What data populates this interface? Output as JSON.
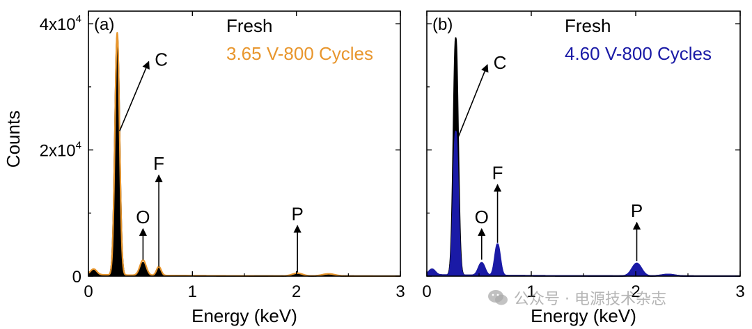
{
  "shared": {
    "ylabel": "Counts",
    "xlabel": "Energy (keV)"
  },
  "watermark": {
    "text": "公众号 · 电源技术杂志",
    "icon": "wechat-icon"
  },
  "chart_data": [
    {
      "type": "line",
      "panel_label": "(a)",
      "xlabel": "Energy (keV)",
      "ylabel": "Counts",
      "xlim": [
        0,
        3
      ],
      "ylim": [
        0,
        42000
      ],
      "x_ticks": [
        0,
        1,
        2,
        3
      ],
      "x_tick_labels": [
        "0",
        "1",
        "2",
        "3"
      ],
      "y_ticks": [
        0,
        20000,
        40000
      ],
      "y_tick_labels": [
        {
          "base": "0",
          "exp": ""
        },
        {
          "base": "2x10",
          "exp": "4"
        },
        {
          "base": "4x10",
          "exp": "4"
        }
      ],
      "legend": [
        "Fresh",
        "3.65 V-800 Cycles"
      ],
      "series": [
        {
          "name": "Fresh",
          "color": "#000000",
          "filled": true,
          "peaks": [
            [
              0.277,
              38000,
              0.022
            ],
            [
              0.525,
              2000,
              0.03
            ],
            [
              0.677,
              1200,
              0.022
            ],
            [
              2.01,
              280,
              0.05
            ],
            [
              2.31,
              250,
              0.06
            ]
          ],
          "baseline": 200
        },
        {
          "name": "3.65 V-800 Cycles",
          "color": "#e8962d",
          "filled": false,
          "peaks": [
            [
              0.277,
              38400,
              0.022
            ],
            [
              0.525,
              2400,
              0.03
            ],
            [
              0.677,
              1400,
              0.022
            ],
            [
              2.01,
              450,
              0.05
            ],
            [
              2.31,
              350,
              0.06
            ]
          ],
          "baseline": 250
        }
      ],
      "annotations": [
        {
          "label": "C",
          "type": "diagonal",
          "x0": 0.3,
          "y0": 23000,
          "x1": 0.58,
          "y1": 34000
        },
        {
          "label": "O",
          "x": 0.525,
          "y_from": 2600,
          "y_to": 7500
        },
        {
          "label": "F",
          "x": 0.677,
          "y_from": 1500,
          "y_to": 16000
        },
        {
          "label": "P",
          "x": 2.01,
          "y_from": 600,
          "y_to": 8000
        }
      ]
    },
    {
      "type": "line",
      "panel_label": "(b)",
      "xlabel": "Energy (keV)",
      "ylabel": "",
      "xlim": [
        0,
        3
      ],
      "ylim": [
        0,
        42000
      ],
      "x_ticks": [
        0,
        1,
        2,
        3
      ],
      "x_tick_labels": [
        "0",
        "1",
        "2",
        "3"
      ],
      "y_ticks": [
        0,
        20000,
        40000
      ],
      "y_tick_labels": [],
      "legend": [
        "Fresh",
        "4.60 V-800 Cycles"
      ],
      "series": [
        {
          "name": "Fresh",
          "color": "#000000",
          "filled": true,
          "peaks": [
            [
              0.277,
              37600,
              0.022
            ],
            [
              0.525,
              2000,
              0.03
            ],
            [
              0.677,
              1200,
              0.022
            ],
            [
              2.01,
              280,
              0.05
            ],
            [
              2.31,
              250,
              0.06
            ]
          ],
          "baseline": 200
        },
        {
          "name": "4.60 V-800 Cycles",
          "color": "#1a1aa6",
          "filled": true,
          "peaks": [
            [
              0.277,
              22800,
              0.022
            ],
            [
              0.525,
              2000,
              0.03
            ],
            [
              0.677,
              5000,
              0.025
            ],
            [
              2.01,
              2000,
              0.045
            ],
            [
              2.31,
              250,
              0.06
            ]
          ],
          "baseline": 200
        }
      ],
      "annotations": [
        {
          "label": "C",
          "type": "diagonal",
          "x0": 0.3,
          "y0": 22000,
          "x1": 0.58,
          "y1": 33500
        },
        {
          "label": "O",
          "x": 0.525,
          "y_from": 2600,
          "y_to": 7500
        },
        {
          "label": "F",
          "x": 0.677,
          "y_from": 5300,
          "y_to": 14500
        },
        {
          "label": "P",
          "x": 2.01,
          "y_from": 2400,
          "y_to": 8500
        }
      ]
    }
  ]
}
